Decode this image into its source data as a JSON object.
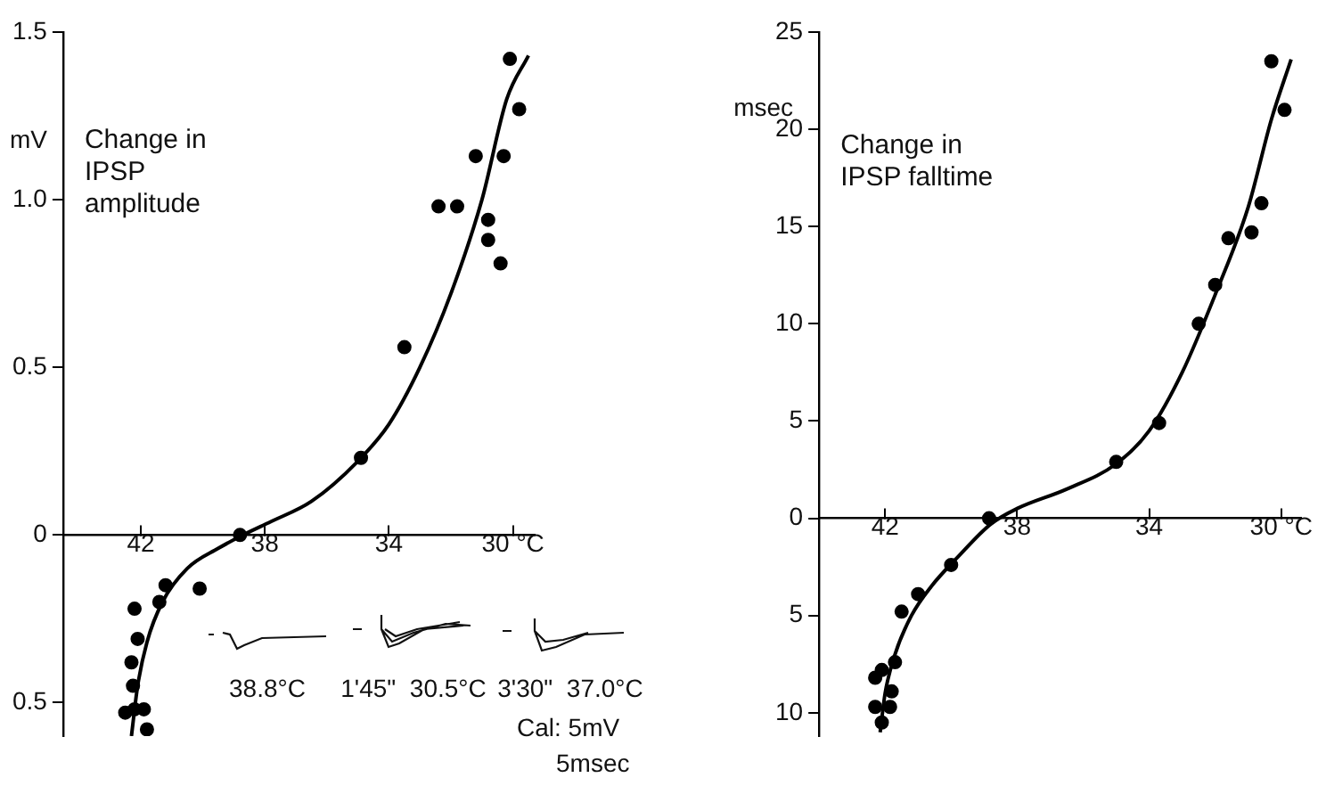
{
  "chart_data": [
    {
      "type": "scatter",
      "title": "Change in IPSP amplitude",
      "ylabel": "mV",
      "xlim": [
        44.5,
        29.3
      ],
      "ylim": [
        -0.6,
        1.5
      ],
      "xticks": [
        42,
        38,
        34,
        {
          "value": 30,
          "label": "30 °C"
        }
      ],
      "yticks": [
        {
          "value": -0.5,
          "label": "0.5"
        },
        0,
        0.5,
        {
          "value": 1,
          "label": "1.0"
        },
        1.5
      ],
      "grid": false,
      "legend": false,
      "marker": "circle",
      "annotations": [
        "38.8°C",
        "1'45\"  30.5°C",
        "3'30\"  37.0°C",
        "Cal: 5mV",
        "5msec"
      ],
      "series": [
        {
          "type": "scatter",
          "color": "#000000",
          "x": [
            30.1,
            29.8,
            31.2,
            30.3,
            32.4,
            31.8,
            30.8,
            30.8,
            30.4,
            33.5,
            34.9,
            38.8,
            40.1,
            41.2,
            41.4,
            42.2,
            42.1,
            42.3,
            42.25,
            42.5,
            42.2,
            41.9,
            41.8
          ],
          "values": [
            1.42,
            1.27,
            1.13,
            1.13,
            0.98,
            0.98,
            0.94,
            0.88,
            0.81,
            0.56,
            0.23,
            0.0,
            -0.16,
            -0.15,
            -0.2,
            -0.22,
            -0.31,
            -0.38,
            -0.45,
            -0.53,
            -0.52,
            -0.52,
            -0.58
          ]
        },
        {
          "type": "line",
          "color": "#000000",
          "marker": "none",
          "x": [
            42.3,
            42.1,
            41.8,
            41.3,
            40.5,
            39.5,
            38.7,
            37.8,
            36.5,
            35,
            34,
            33,
            32,
            31,
            30.2,
            29.5
          ],
          "values": [
            -0.6,
            -0.45,
            -0.32,
            -0.2,
            -0.1,
            -0.04,
            0.0,
            0.04,
            0.1,
            0.22,
            0.33,
            0.5,
            0.72,
            1.0,
            1.3,
            1.43
          ]
        }
      ]
    },
    {
      "type": "scatter",
      "title": "Change in IPSP falltime",
      "ylabel": "msec",
      "xlim": [
        44,
        29.4
      ],
      "ylim": [
        -11.2,
        25
      ],
      "xticks": [
        42,
        38,
        34,
        {
          "value": 30,
          "label": "30 °C"
        }
      ],
      "yticks": [
        {
          "value": -10,
          "label": "10"
        },
        {
          "value": -5,
          "label": "5"
        },
        0,
        5,
        10,
        15,
        20,
        25
      ],
      "grid": false,
      "legend": false,
      "marker": "circle",
      "series": [
        {
          "type": "scatter",
          "color": "#000000",
          "x": [
            30.3,
            29.9,
            30.6,
            30.9,
            31.6,
            32.0,
            32.5,
            33.7,
            35.0,
            38.85,
            40.0,
            41.0,
            41.5,
            41.7,
            42.1,
            42.3,
            41.8,
            42.3,
            41.85,
            42.1
          ],
          "values": [
            23.5,
            21.0,
            16.2,
            14.7,
            14.4,
            12.0,
            10.0,
            4.9,
            2.9,
            0,
            -2.4,
            -3.9,
            -4.8,
            -7.4,
            -7.8,
            -8.2,
            -8.9,
            -9.7,
            -9.7,
            -10.5
          ]
        },
        {
          "type": "line",
          "color": "#000000",
          "marker": "none",
          "x": [
            42.15,
            42.0,
            41.7,
            41.2,
            40.6,
            39.8,
            38.8,
            38,
            36.5,
            35,
            34,
            33,
            32,
            31,
            30.3,
            29.7
          ],
          "values": [
            -11,
            -9,
            -7,
            -5,
            -3.5,
            -2,
            -0.3,
            0.5,
            1.5,
            2.8,
            4.5,
            7.5,
            11.5,
            16,
            20.5,
            23.6
          ]
        }
      ]
    }
  ]
}
